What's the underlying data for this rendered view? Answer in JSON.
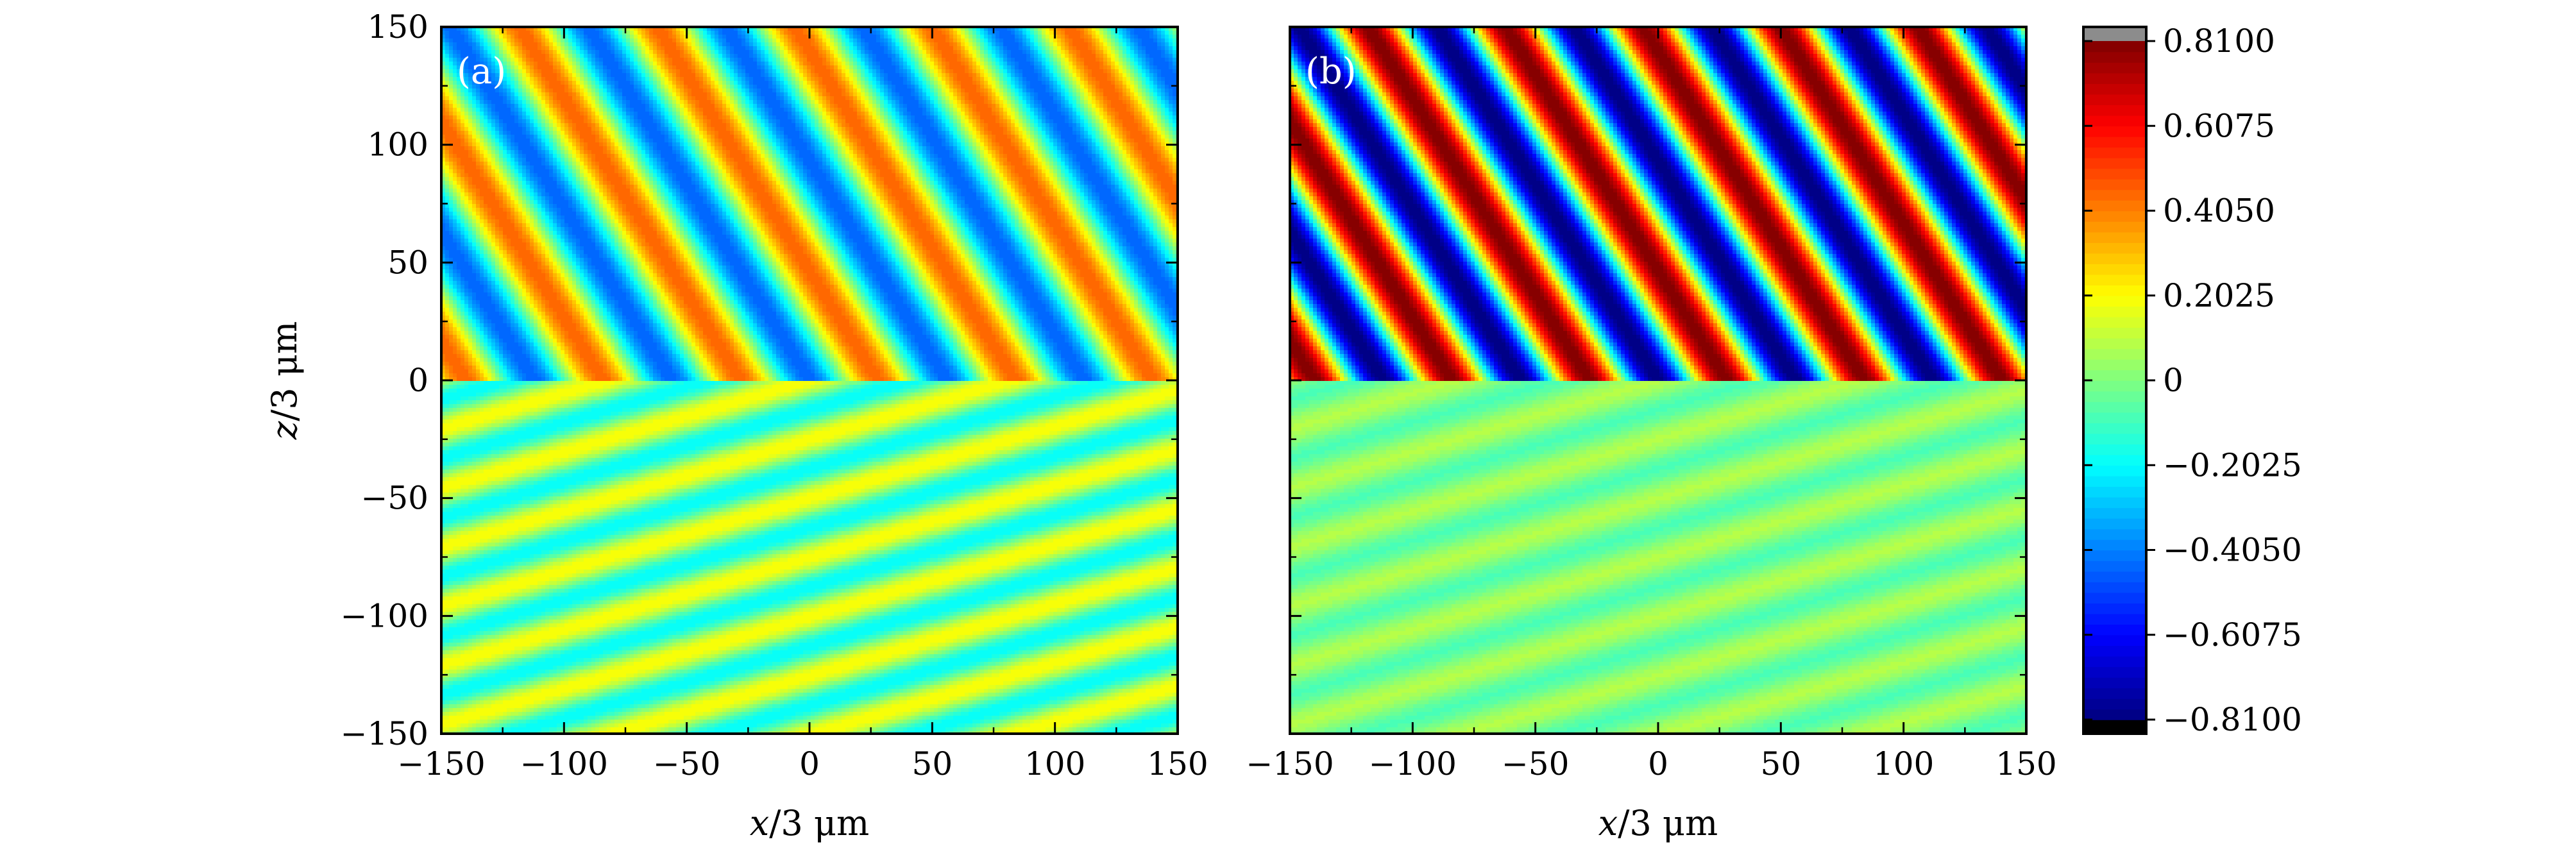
{
  "chart_data": [
    {
      "type": "heatmap",
      "panel_label": "(a)",
      "xlabel_var": "x",
      "xlabel_unit": "/3 μm",
      "ylabel_var": "z",
      "ylabel_unit": "/3 μm",
      "xlim": [
        -150,
        150
      ],
      "ylim": [
        -150,
        150
      ],
      "xticks": [
        -150,
        -100,
        -50,
        0,
        50,
        100,
        150
      ],
      "xtick_labels": [
        "−150",
        "−100",
        "−50",
        "0",
        "50",
        "100",
        "150"
      ],
      "yticks": [
        -150,
        -100,
        -50,
        0,
        50,
        100,
        150
      ],
      "ytick_labels": [
        "−150",
        "−100",
        "−50",
        "0",
        "50",
        "100",
        "150"
      ],
      "upper_region": {
        "z_range": [
          0,
          150
        ],
        "amplitude": 0.45,
        "wavelength": 48,
        "stripe_angle_deg": -59,
        "phase_deg": 180
      },
      "lower_region": {
        "z_range": [
          -150,
          0
        ],
        "amplitude": 0.2,
        "wavelength": 24,
        "stripe_angle_deg": 17,
        "phase_deg": 0
      }
    },
    {
      "type": "heatmap",
      "panel_label": "(b)",
      "xlabel_var": "x",
      "xlabel_unit": "/3 μm",
      "xlim": [
        -150,
        150
      ],
      "ylim": [
        -150,
        150
      ],
      "xticks": [
        -150,
        -100,
        -50,
        0,
        50,
        100,
        150
      ],
      "xtick_labels": [
        "−150",
        "−100",
        "−50",
        "0",
        "50",
        "100",
        "150"
      ],
      "upper_region": {
        "z_range": [
          0,
          150
        ],
        "amplitude": 0.81,
        "wavelength": 48,
        "stripe_angle_deg": -59,
        "phase_deg": 180
      },
      "lower_region": {
        "z_range": [
          -150,
          0
        ],
        "amplitude": 0.08,
        "wavelength": 24,
        "stripe_angle_deg": 17,
        "phase_deg": 0
      }
    }
  ],
  "colorbar": {
    "min": -0.81,
    "max": 0.81,
    "ticks": [
      0.81,
      0.6075,
      0.405,
      0.2025,
      0,
      -0.2025,
      -0.405,
      -0.6075,
      -0.81
    ],
    "tick_labels": [
      "0.8100",
      "0.6075",
      "0.4050",
      "0.2025",
      "0",
      "−0.2025",
      "−0.4050",
      "−0.6075",
      "−0.8100"
    ],
    "levels": 64,
    "over_color": "#8c8c8c",
    "under_color": "#000000"
  }
}
